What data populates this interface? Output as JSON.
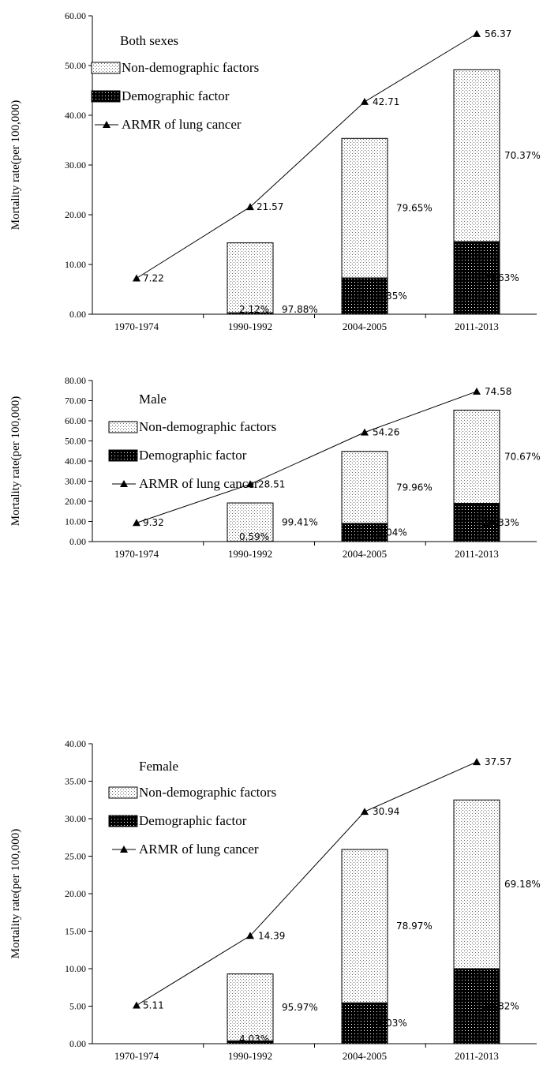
{
  "chart_data": [
    {
      "type": "bar",
      "title": "Both sexes",
      "ylabel": "Mortality  rate(per 100,000)",
      "categories": [
        "1970-1974",
        "1990-1992",
        "2004-2005",
        "2011-2013"
      ],
      "yticks": [
        "0.00",
        "10.00",
        "20.00",
        "30.00",
        "40.00",
        "50.00",
        "60.00"
      ],
      "ylim": [
        0,
        60
      ],
      "legend": [
        "Non-demographic factors",
        "Demographic factor",
        "ARMR of lung cancer"
      ],
      "series": [
        {
          "name": "Demographic factor",
          "values": [
            null,
            0.3,
            7.3,
            14.6
          ],
          "labels": [
            "",
            "2.12%",
            "20.35%",
            "29.63%"
          ]
        },
        {
          "name": "Non-demographic factors",
          "values": [
            null,
            14.05,
            28.05,
            34.55
          ],
          "labels": [
            "",
            "97.88%",
            "79.65%",
            "70.37%"
          ]
        },
        {
          "name": "ARMR of lung cancer",
          "values": [
            7.22,
            21.57,
            42.71,
            56.37
          ],
          "labels": [
            "7.22",
            "21.57",
            "42.71",
            "56.37"
          ]
        }
      ]
    },
    {
      "type": "bar",
      "title": "Male",
      "ylabel": "Mortality  rate(per 100,000)",
      "categories": [
        "1970-1974",
        "1990-1992",
        "2004-2005",
        "2011-2013"
      ],
      "yticks": [
        "0.00",
        "10.00",
        "20.00",
        "30.00",
        "40.00",
        "50.00",
        "60.00",
        "70.00",
        "80.00"
      ],
      "ylim": [
        0,
        80
      ],
      "legend": [
        "Non-demographic factors",
        "Demographic factor",
        "ARMR of lung cancer"
      ],
      "series": [
        {
          "name": "Demographic factor",
          "values": [
            null,
            0.1,
            9.0,
            19.0
          ],
          "labels": [
            "",
            "0.59%",
            "20.04%",
            "29.33%"
          ]
        },
        {
          "name": "Non-demographic factors",
          "values": [
            null,
            19.1,
            35.8,
            46.3
          ],
          "labels": [
            "",
            "99.41%",
            "79.96%",
            "70.67%"
          ]
        },
        {
          "name": "ARMR of lung cancer",
          "values": [
            9.32,
            28.51,
            54.26,
            74.58
          ],
          "labels": [
            "9.32",
            "28.51",
            "54.26",
            "74.58"
          ]
        }
      ]
    },
    {
      "type": "bar",
      "title": "Female",
      "ylabel": "Mortality  rate(per 100,000)",
      "categories": [
        "1970-1974",
        "1990-1992",
        "2004-2005",
        "2011-2013"
      ],
      "yticks": [
        "0.00",
        "5.00",
        "10.00",
        "15.00",
        "20.00",
        "25.00",
        "30.00",
        "35.00",
        "40.00"
      ],
      "ylim": [
        0,
        40
      ],
      "legend": [
        "Non-demographic factors",
        "Demographic factor",
        "ARMR of lung cancer"
      ],
      "series": [
        {
          "name": "Demographic factor",
          "values": [
            null,
            0.38,
            5.45,
            10.0
          ],
          "labels": [
            "",
            "4.03%",
            "21.03%",
            "30.82%"
          ]
        },
        {
          "name": "Non-demographic factors",
          "values": [
            null,
            8.92,
            20.45,
            22.5
          ],
          "labels": [
            "",
            "95.97%",
            "78.97%",
            "69.18%"
          ]
        },
        {
          "name": "ARMR of lung cancer",
          "values": [
            5.11,
            14.39,
            30.94,
            37.57
          ],
          "labels": [
            "5.11",
            "14.39",
            "30.94",
            "37.57"
          ]
        }
      ]
    }
  ]
}
